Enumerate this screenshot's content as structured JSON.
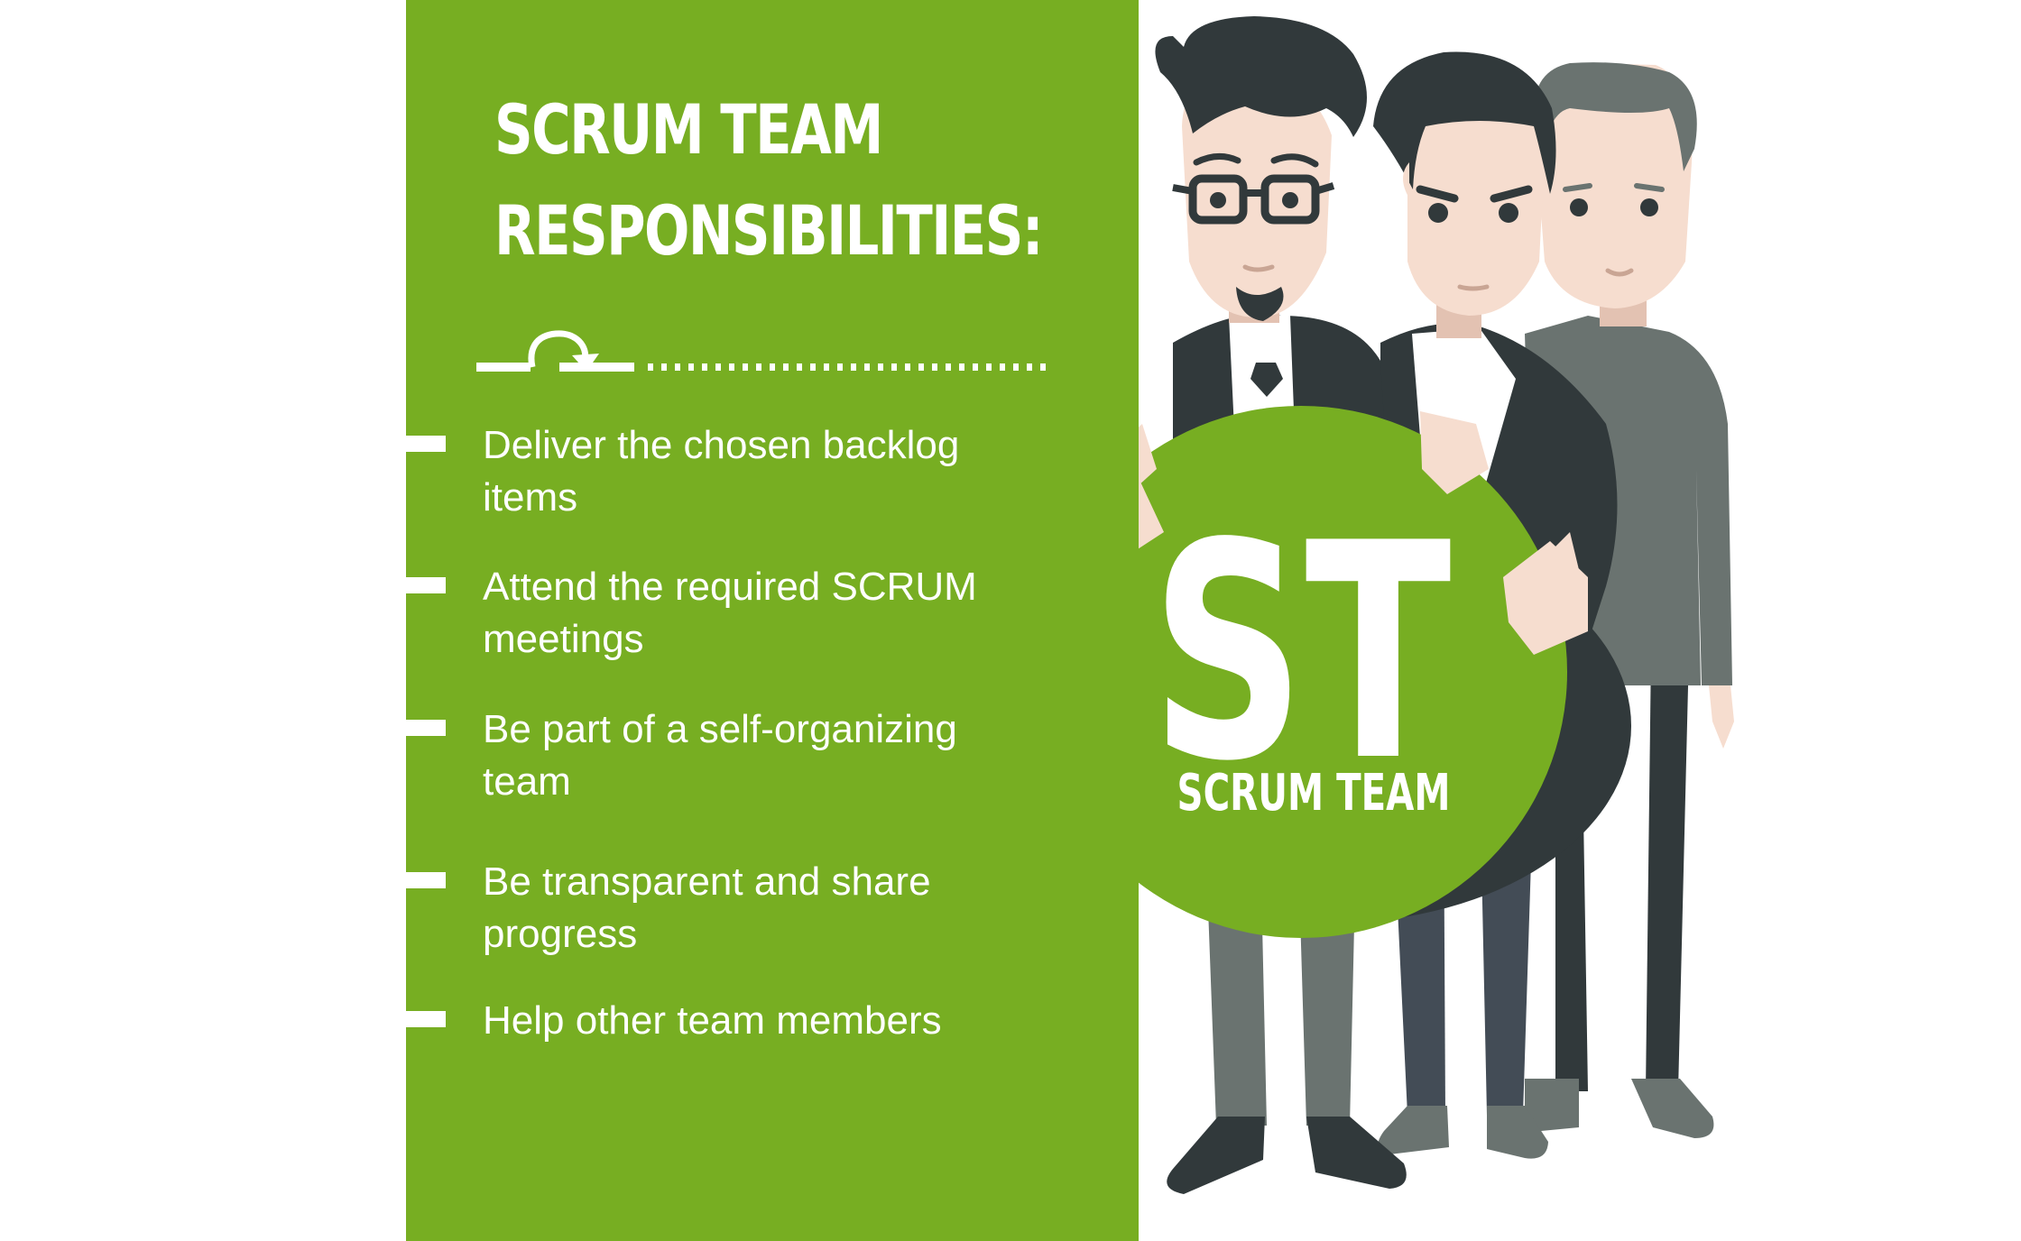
{
  "title_line1": "SCRUM TEAM",
  "title_line2": "RESPONSIBILITIES:",
  "responsibilities": [
    {
      "line1": "Deliver the chosen backlog",
      "line2": "items"
    },
    {
      "line1": "Attend the required SCRUM",
      "line2": "meetings"
    },
    {
      "line1": "Be part of a self-organizing",
      "line2": "team"
    },
    {
      "line1": "Be transparent and share",
      "line2": "progress"
    },
    {
      "line1": "Help other team members",
      "line2": ""
    }
  ],
  "badge": {
    "initials": "ST",
    "label": "SCRUM TEAM"
  },
  "colors": {
    "green": "#77ae22",
    "dark": "#31393b",
    "gray": "#6a7370",
    "skin": "#f6ddcf"
  },
  "icons": {
    "divider": "loop-arrow-icon"
  }
}
